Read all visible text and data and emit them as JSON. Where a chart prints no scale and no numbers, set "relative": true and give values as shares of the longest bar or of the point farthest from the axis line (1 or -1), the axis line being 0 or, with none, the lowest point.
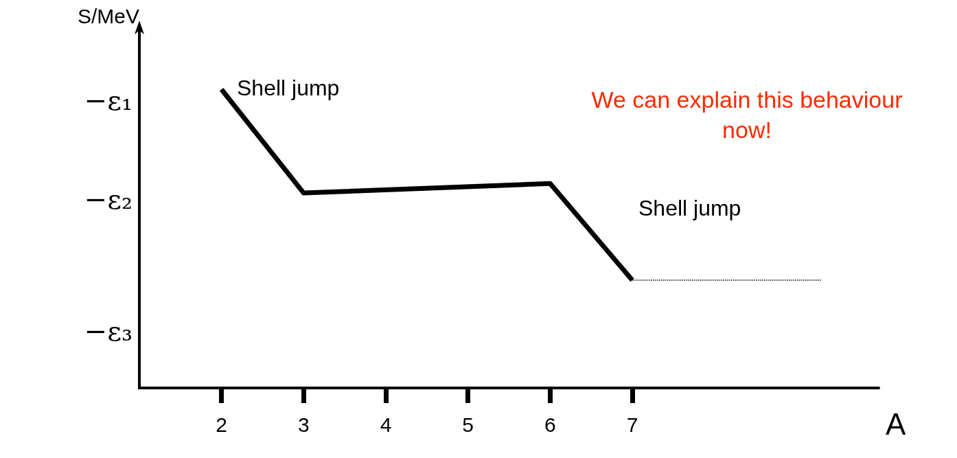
{
  "chart_data": {
    "type": "line",
    "relative": true,
    "xlabel": "A",
    "ylabel": "S/MeV",
    "xlim": [
      1,
      10
    ],
    "xticks": [
      2,
      3,
      4,
      5,
      6,
      7
    ],
    "marker": "none",
    "grid": false,
    "series": [
      {
        "color": "#000000",
        "x": [
          2,
          3,
          6,
          7
        ],
        "values": [
          1,
          0.653,
          0.685,
          0.361
        ],
        "line_style": "solid"
      },
      {
        "color": "#000000",
        "x": [
          7,
          9.3
        ],
        "values": [
          0.361,
          0.361
        ],
        "line_style": "dotted"
      }
    ],
    "annotations": [
      "−ε₁",
      "−ε₂",
      "−ε₃",
      "Shell jump",
      "Shell jump",
      "We can explain this behaviour now!"
    ]
  }
}
